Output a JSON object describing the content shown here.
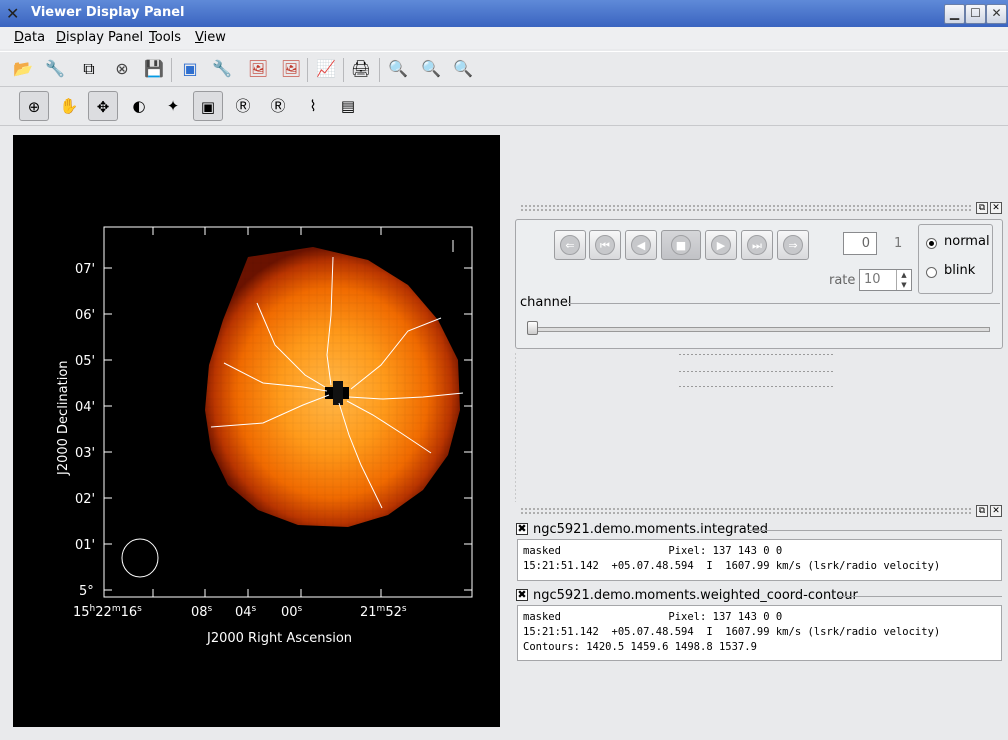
{
  "window": {
    "title": "Viewer Display Panel"
  },
  "menu": [
    {
      "label": "Data",
      "mnemonic": "D",
      "rest": "ata"
    },
    {
      "label": "Display Panel",
      "mnemonic": "D",
      "rest": "isplay Panel"
    },
    {
      "label": "Tools",
      "mnemonic": "T",
      "rest": "ools"
    },
    {
      "label": "View",
      "mnemonic": "V",
      "rest": "iew"
    }
  ],
  "toolbar_icons": [
    "open-folder-icon",
    "wrench-icon",
    "copy-panel-icon",
    "close-circle-icon",
    "save-data-icon",
    "new-panel-icon",
    "print-preferences-icon",
    "save-image-icon",
    "export-image-icon",
    "plot-icon",
    "printer-icon",
    "zoom-fit-icon",
    "zoom-in-icon",
    "zoom-out-icon"
  ],
  "mouse_tools": [
    "zoom-tool-icon",
    "pan-tool-icon",
    "crosshair-tool-icon",
    "contrast-tool-icon",
    "colormap-tool-icon",
    "rectangle-region-icon",
    "ellipse-region-icon",
    "polygon-region-icon",
    "polyline-icon",
    "ruler-icon"
  ],
  "sky": {
    "ylabel": "J2000 Declination",
    "xlabel": "J2000 Right Ascension",
    "dec_ticks": [
      "07'",
      "06'",
      "05'",
      "04'",
      "03'",
      "02'",
      "01'"
    ],
    "dec_origin": "5°",
    "ra_ticks": [
      "08",
      "04",
      "00"
    ],
    "ra_last": "21",
    "ra_last_min": "m",
    "ra_last_sec": "52",
    "ra_origin_h": "15",
    "ra_origin_hu": "h",
    "ra_origin_m": "22",
    "ra_origin_mu": "m",
    "ra_origin_s": "16",
    "sec_unit": "s"
  },
  "animator": {
    "frame": "0",
    "total": "1",
    "rate_label": "rate",
    "rate": "10",
    "modes": [
      "normal",
      "blink"
    ],
    "selected_mode": "normal",
    "slider_label": "channel",
    "buttons": [
      "rewind-to-start-icon",
      "step-back-icon",
      "play-reverse-icon",
      "stop-icon",
      "play-forward-icon",
      "step-forward-icon",
      "jump-to-end-icon"
    ]
  },
  "layers": [
    {
      "name": "ngc5921.demo.moments.integrated",
      "checked": true,
      "lines": [
        "masked                 Pixel: 137 143 0 0",
        "15:21:51.142  +05.07.48.594  I  1607.99 km/s (lsrk/radio velocity)"
      ]
    },
    {
      "name": "ngc5921.demo.moments.weighted_coord-contour",
      "checked": true,
      "lines": [
        "masked                 Pixel: 137 143 0 0",
        "15:21:51.142  +05.07.48.594  I  1607.99 km/s (lsrk/radio velocity)",
        "Contours: 1420.5 1459.6 1498.8 1537.9"
      ]
    }
  ],
  "colors": {
    "title_bar": "#3a64c0",
    "image_core": "#ff9a1a",
    "image_edge": "#6a1200",
    "canvas": "#000000"
  }
}
